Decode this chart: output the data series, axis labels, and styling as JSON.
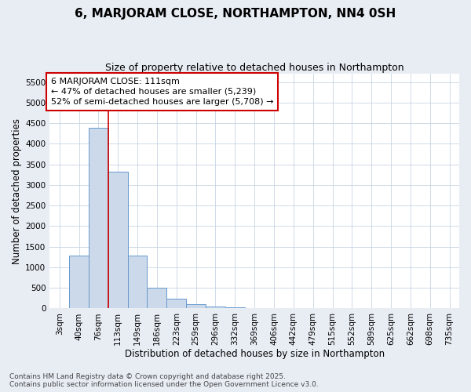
{
  "title": "6, MARJORAM CLOSE, NORTHAMPTON, NN4 0SH",
  "subtitle": "Size of property relative to detached houses in Northampton",
  "xlabel": "Distribution of detached houses by size in Northampton",
  "ylabel": "Number of detached properties",
  "categories": [
    "3sqm",
    "40sqm",
    "76sqm",
    "113sqm",
    "149sqm",
    "186sqm",
    "223sqm",
    "259sqm",
    "296sqm",
    "332sqm",
    "369sqm",
    "406sqm",
    "442sqm",
    "479sqm",
    "515sqm",
    "552sqm",
    "589sqm",
    "625sqm",
    "662sqm",
    "698sqm",
    "735sqm"
  ],
  "values": [
    0,
    1280,
    4380,
    3320,
    1280,
    500,
    230,
    100,
    50,
    30,
    0,
    0,
    0,
    0,
    0,
    0,
    0,
    0,
    0,
    0,
    0
  ],
  "bar_color": "#ccd9ea",
  "bar_edge_color": "#6699cc",
  "grid_color": "#c8d4e4",
  "background_color": "#e8edf4",
  "plot_bg_color": "#ffffff",
  "vline_color": "#cc0000",
  "vline_x": 2.5,
  "annotation_text": "6 MARJORAM CLOSE: 111sqm\n← 47% of detached houses are smaller (5,239)\n52% of semi-detached houses are larger (5,708) →",
  "annotation_box_color": "#ffffff",
  "annotation_box_edge": "#cc0000",
  "ylim_max": 5700,
  "yticks": [
    0,
    500,
    1000,
    1500,
    2000,
    2500,
    3000,
    3500,
    4000,
    4500,
    5000,
    5500
  ],
  "footer_line1": "Contains HM Land Registry data © Crown copyright and database right 2025.",
  "footer_line2": "Contains public sector information licensed under the Open Government Licence v3.0.",
  "title_fontsize": 11,
  "subtitle_fontsize": 9,
  "axis_label_fontsize": 8.5,
  "tick_fontsize": 7.5,
  "annotation_fontsize": 8,
  "footer_fontsize": 6.5
}
